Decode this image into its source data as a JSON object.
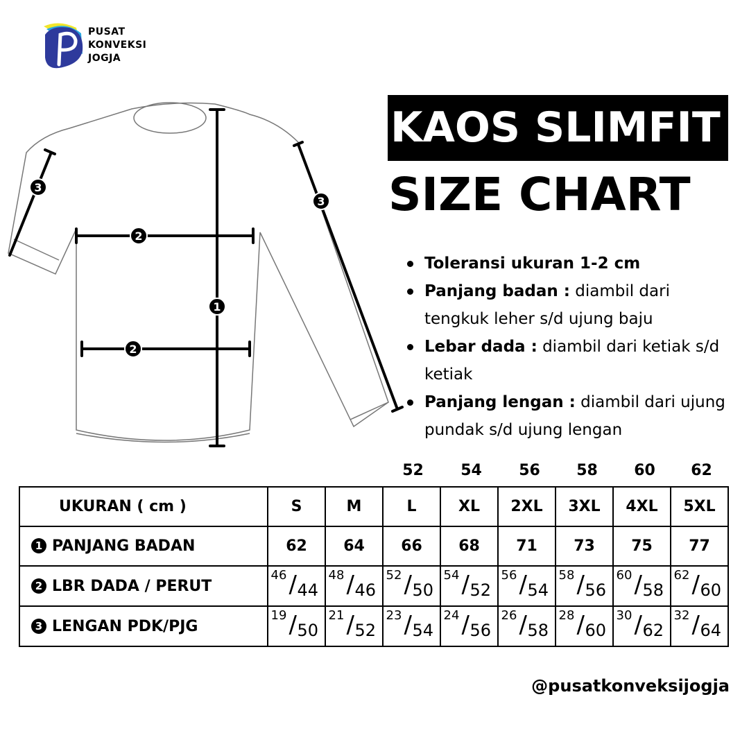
{
  "brand": {
    "logo_text": [
      "PUSAT",
      "KONVEKSI",
      "JOGJA"
    ],
    "colors": {
      "blue": "#2e3a9c",
      "cyan": "#29a8e0",
      "yellow": "#f2e62a"
    }
  },
  "title": {
    "line1": "KAOS SLIMFIT",
    "line2": "SIZE CHART"
  },
  "notes": [
    {
      "bold": "Toleransi ukuran 1-2 cm",
      "text": ""
    },
    {
      "bold": "Panjang badan :",
      "text": " diambil dari tengkuk leher s/d ujung baju"
    },
    {
      "bold": "Lebar dada :",
      "text": " diambil dari ketiak s/d ketiak"
    },
    {
      "bold": "Panjang lengan :",
      "text": " diambil dari ujung pundak s/d ujung lengan"
    }
  ],
  "diagram_markers": [
    "1",
    "2",
    "2",
    "3",
    "3"
  ],
  "table": {
    "top_numbers": [
      "",
      "",
      "52",
      "54",
      "56",
      "58",
      "60",
      "62"
    ],
    "header": {
      "label": "UKURAN ( cm )",
      "sizes": [
        "S",
        "M",
        "L",
        "XL",
        "2XL",
        "3XL",
        "4XL",
        "5XL"
      ]
    },
    "rows": [
      {
        "num": "1",
        "label": "PANJANG BADAN",
        "values": [
          "62",
          "64",
          "66",
          "68",
          "71",
          "73",
          "75",
          "77"
        ]
      },
      {
        "num": "2",
        "label": "LBR DADA / PERUT",
        "values": [
          [
            "46",
            "44"
          ],
          [
            "48",
            "46"
          ],
          [
            "52",
            "50"
          ],
          [
            "54",
            "52"
          ],
          [
            "56",
            "54"
          ],
          [
            "58",
            "56"
          ],
          [
            "60",
            "58"
          ],
          [
            "62",
            "60"
          ]
        ]
      },
      {
        "num": "3",
        "label": "LENGAN PDK/PJG",
        "values": [
          [
            "19",
            "50"
          ],
          [
            "21",
            "52"
          ],
          [
            "23",
            "54"
          ],
          [
            "24",
            "56"
          ],
          [
            "26",
            "58"
          ],
          [
            "28",
            "60"
          ],
          [
            "30",
            "62"
          ],
          [
            "32",
            "64"
          ]
        ]
      }
    ]
  },
  "handle": "@pusatkonveksijogja"
}
